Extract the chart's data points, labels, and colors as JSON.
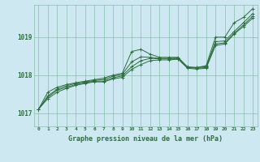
{
  "background_color": "#cde8f0",
  "plot_bg_color": "#cde8f0",
  "grid_color": "#89bfac",
  "line_color": "#2d6e3e",
  "title": "Graphe pression niveau de la mer (hPa)",
  "ylabel_ticks": [
    1017,
    1018,
    1019
  ],
  "xlim": [
    -0.5,
    23.5
  ],
  "ylim": [
    1016.65,
    1019.85
  ],
  "series": [
    [
      1017.1,
      1017.55,
      1017.68,
      1017.75,
      1017.8,
      1017.84,
      1017.88,
      1017.92,
      1018.0,
      1018.05,
      1018.62,
      1018.68,
      1018.55,
      1018.47,
      1018.47,
      1018.47,
      1018.2,
      1018.2,
      1018.25,
      1019.0,
      1019.0,
      1019.38,
      1019.52,
      1019.75
    ],
    [
      1017.1,
      1017.45,
      1017.63,
      1017.72,
      1017.78,
      1017.82,
      1017.86,
      1017.88,
      1017.97,
      1018.02,
      1018.35,
      1018.48,
      1018.47,
      1018.44,
      1018.44,
      1018.45,
      1018.22,
      1018.2,
      1018.22,
      1018.88,
      1018.9,
      1019.15,
      1019.38,
      1019.62
    ],
    [
      1017.1,
      1017.42,
      1017.6,
      1017.68,
      1017.75,
      1017.8,
      1017.84,
      1017.84,
      1017.93,
      1017.98,
      1018.22,
      1018.38,
      1018.44,
      1018.43,
      1018.43,
      1018.43,
      1018.2,
      1018.18,
      1018.2,
      1018.82,
      1018.85,
      1019.1,
      1019.32,
      1019.55
    ],
    [
      1017.1,
      1017.38,
      1017.55,
      1017.65,
      1017.73,
      1017.78,
      1017.82,
      1017.82,
      1017.9,
      1017.94,
      1018.15,
      1018.28,
      1018.38,
      1018.4,
      1018.4,
      1018.42,
      1018.18,
      1018.16,
      1018.18,
      1018.78,
      1018.82,
      1019.08,
      1019.28,
      1019.5
    ]
  ]
}
